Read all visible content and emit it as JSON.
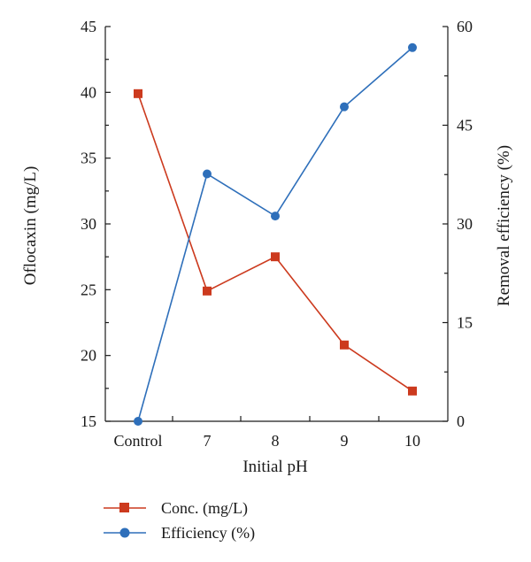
{
  "chart_data": {
    "type": "line",
    "categories": [
      "Control",
      "7",
      "8",
      "9",
      "10"
    ],
    "xlabel": "Initial pH",
    "ylabel_left": "Oflocaxin (mg/L)",
    "ylabel_right": "Removal efficiency (%)",
    "ylim_left": [
      15,
      45
    ],
    "yticks_left": [
      15,
      20,
      25,
      30,
      35,
      40,
      45
    ],
    "ylim_right": [
      0,
      60
    ],
    "yticks_right": [
      0,
      15,
      30,
      45,
      60
    ],
    "grid": false,
    "legend_position": "bottom-left",
    "series": [
      {
        "name": "Conc. (mg/L)",
        "axis": "left",
        "marker": "square",
        "color": "#cc3a1e",
        "values": [
          39.9,
          24.9,
          27.5,
          20.8,
          17.3
        ]
      },
      {
        "name": "Efficiency (%)",
        "axis": "right",
        "marker": "circle",
        "color": "#2e6fba",
        "values": [
          0,
          37.6,
          31.2,
          47.8,
          56.8
        ]
      }
    ]
  }
}
